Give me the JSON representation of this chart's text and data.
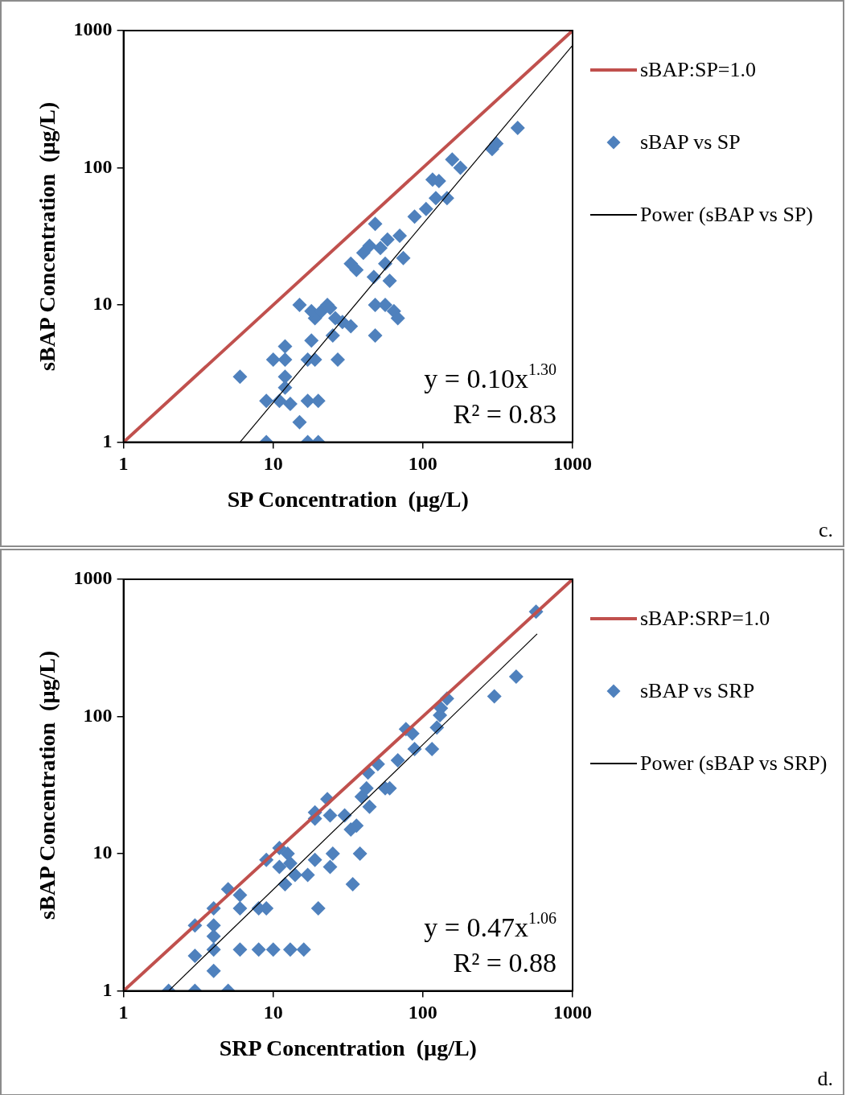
{
  "chart_data": [
    {
      "type": "scatter",
      "xlabel": "SP Concentration  (µg/L)",
      "ylabel": "sBAP Concentration  (µg/L)",
      "log": "xy",
      "xlim": [
        1,
        1000
      ],
      "ylim": [
        1,
        1000
      ],
      "xticks": [
        1,
        10,
        100,
        1000
      ],
      "yticks": [
        1,
        10,
        100,
        1000
      ],
      "grid": false,
      "legend": "right",
      "annotations": [
        "y = 0.10x$^{1.30}$",
        "R² = 0.83",
        "c."
      ],
      "series": [
        {
          "name": "sBAP:SP=1.0",
          "type": "line",
          "marker": "none",
          "color": "#c0504d",
          "x": [
            1,
            1000
          ],
          "values": [
            1,
            1000
          ]
        },
        {
          "name": "sBAP vs SP",
          "type": "scatter",
          "marker": "diamond",
          "color": "#4f81bd",
          "x": [
            6,
            9,
            9,
            10,
            12,
            12,
            12,
            12,
            11,
            13,
            15,
            15,
            17,
            17,
            18,
            19,
            19,
            17,
            18,
            20,
            20,
            21,
            23,
            24,
            26,
            25,
            27,
            29,
            33,
            33,
            36,
            40,
            44,
            48,
            47,
            48,
            48,
            52,
            56,
            58,
            56,
            60,
            64,
            68,
            70,
            74,
            88,
            105,
            116,
            122,
            128,
            145,
            157,
            178,
            290,
            310,
            430
          ],
          "values": [
            3,
            1,
            2,
            4,
            5,
            4,
            3,
            2.5,
            2,
            1.9,
            1.4,
            10,
            2,
            1,
            5.5,
            8,
            4,
            4,
            9,
            1,
            2,
            9,
            10,
            9.5,
            8,
            6,
            4,
            7.5,
            7,
            20,
            18,
            24,
            27,
            39,
            16,
            10,
            6,
            26,
            20,
            30,
            10,
            15,
            9,
            8,
            32,
            22,
            44,
            50,
            82,
            60,
            80,
            60,
            115,
            100,
            137,
            150,
            195
          ]
        },
        {
          "name": "Power (sBAP vs SP)",
          "type": "line",
          "marker": "none",
          "color": "#000000",
          "x": [
            6,
            1000
          ],
          "values": [
            1,
            780
          ]
        }
      ]
    },
    {
      "type": "scatter",
      "xlabel": "SRP Concentration  (µg/L)",
      "ylabel": "sBAP Concentration  (µg/L)",
      "log": "xy",
      "xlim": [
        1,
        1000
      ],
      "ylim": [
        1,
        1000
      ],
      "xticks": [
        1,
        10,
        100,
        1000
      ],
      "yticks": [
        1,
        10,
        100,
        1000
      ],
      "grid": false,
      "legend": "right",
      "annotations": [
        "y = 0.47x$^{1.06}$",
        "R² = 0.88",
        "d."
      ],
      "series": [
        {
          "name": "sBAP:SRP=1.0",
          "type": "line",
          "marker": "none",
          "color": "#c0504d",
          "x": [
            1,
            1000
          ],
          "values": [
            1,
            1000
          ]
        },
        {
          "name": "sBAP vs SRP",
          "type": "scatter",
          "marker": "diamond",
          "color": "#4f81bd",
          "x": [
            570,
            420,
            300,
            145,
            132,
            130,
            124,
            115,
            77,
            85,
            88,
            68,
            50,
            43,
            42,
            39,
            44,
            56,
            60,
            23,
            24,
            19,
            19,
            30,
            36,
            33,
            25,
            38,
            19,
            24,
            34,
            20,
            17,
            9,
            11,
            12.5,
            11,
            13,
            12,
            14,
            8,
            9,
            5,
            6,
            6,
            4,
            3,
            4,
            4,
            4,
            3,
            4,
            2,
            3,
            5,
            6,
            8,
            10,
            13,
            16
          ],
          "values": [
            580,
            195,
            140,
            135,
            115,
            102,
            83,
            58,
            81,
            75,
            58,
            48,
            45,
            39,
            30,
            26,
            22,
            30,
            30,
            25,
            19,
            20,
            18,
            19,
            16,
            15,
            10,
            10,
            9,
            8,
            6,
            4,
            7,
            9,
            11,
            10,
            8,
            8.5,
            6,
            7,
            4,
            4,
            5.5,
            5,
            4,
            4,
            3,
            3,
            2.5,
            2,
            1.8,
            1.4,
            1,
            1,
            1,
            2,
            2,
            2,
            2,
            2
          ]
        },
        {
          "name": "Power (sBAP vs SRP)",
          "type": "line",
          "marker": "none",
          "color": "#000000",
          "x": [
            2,
            580
          ],
          "values": [
            1,
            400
          ]
        }
      ]
    }
  ]
}
